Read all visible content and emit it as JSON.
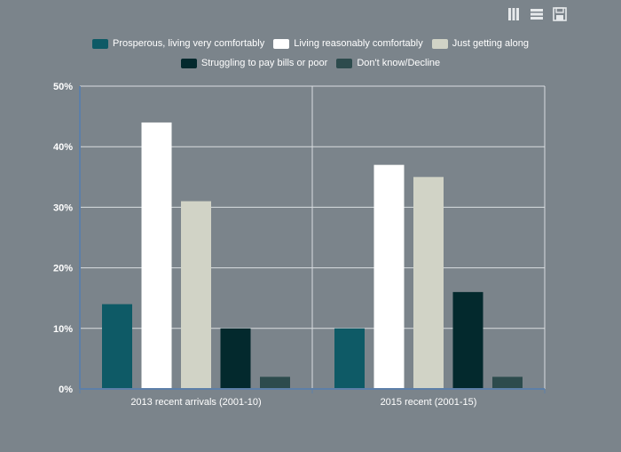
{
  "toolbar": {
    "buttons": [
      {
        "name": "bar-chart-icon"
      },
      {
        "name": "list-view-icon"
      },
      {
        "name": "save-icon"
      }
    ]
  },
  "chart_data": {
    "type": "bar",
    "title": "",
    "xlabel": "",
    "ylabel": "",
    "categories": [
      "2013 recent arrivals (2001-10)",
      "2015 recent (2001-15)"
    ],
    "ylim": [
      0,
      50
    ],
    "yticks": [
      "0%",
      "10%",
      "20%",
      "30%",
      "40%",
      "50%"
    ],
    "ytick_values": [
      0,
      10,
      20,
      30,
      40,
      50
    ],
    "series": [
      {
        "name": "Prosperous, living very comfortably",
        "color": "#0e5a66",
        "values": [
          14,
          10
        ]
      },
      {
        "name": "Living reasonably comfortably",
        "color": "#ffffff",
        "values": [
          44,
          37
        ]
      },
      {
        "name": "Just getting along",
        "color": "#d1d3c6",
        "values": [
          31,
          35
        ]
      },
      {
        "name": "Struggling to pay bills or poor",
        "color": "#03292d",
        "values": [
          10,
          16
        ]
      },
      {
        "name": "Don't know/Decline",
        "color": "#2d4b4d",
        "values": [
          2,
          2
        ]
      }
    ],
    "legend": "top-center",
    "grid": true
  }
}
